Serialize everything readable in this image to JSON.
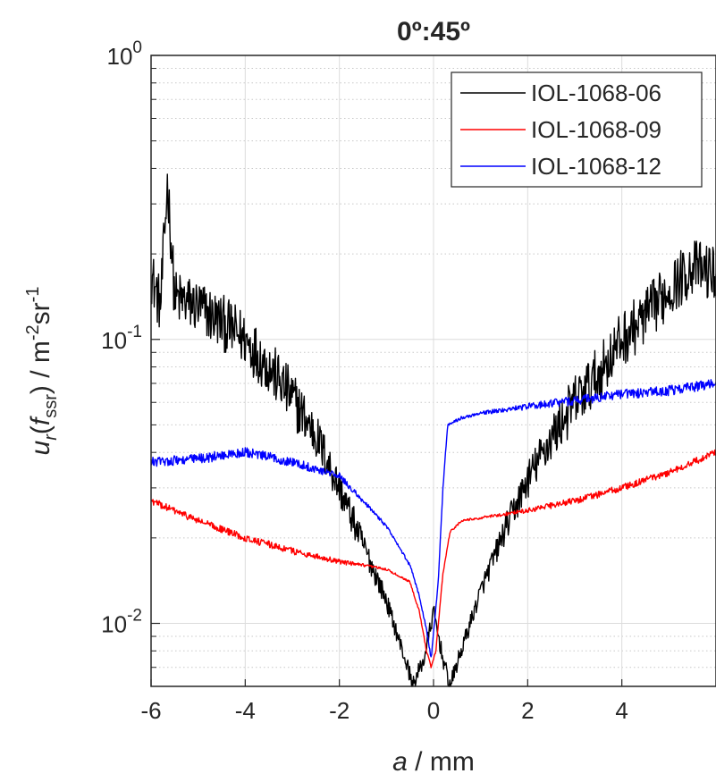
{
  "chart_data": {
    "type": "line",
    "title": "0º:45º",
    "xlabel": {
      "var": "a",
      "rest": " / mm"
    },
    "ylabel": {
      "var": "u",
      "sub_r": "r",
      "paren_open": "(",
      "f": "f",
      "sub_ssr": "ssr",
      "paren_close": ")",
      "unit": " / m",
      "exp1": "-2",
      "sr": "sr",
      "exp2": "-1"
    },
    "xlim": [
      -6,
      6
    ],
    "ylim": [
      0.006,
      1
    ],
    "yscale": "log",
    "grid": true,
    "minor_grid": true,
    "legend_position": "top-right",
    "x_ticks": [
      -6,
      -4,
      -2,
      0,
      2,
      4
    ],
    "x_tick_labels": [
      "-6",
      "-4",
      "-2",
      "0",
      "2",
      "4"
    ],
    "y_ticks": [
      {
        "base": "10",
        "exp": "0",
        "value": 1
      },
      {
        "base": "10",
        "exp": "-1",
        "value": 0.1
      },
      {
        "base": "10",
        "exp": "-2",
        "value": 0.01
      }
    ],
    "series": [
      {
        "name": "IOL-1068-06",
        "color": "#000000",
        "noise": 0.2,
        "points": [
          [
            -6.0,
            0.17
          ],
          [
            -5.8,
            0.13
          ],
          [
            -5.65,
            0.36
          ],
          [
            -5.5,
            0.14
          ],
          [
            -5.0,
            0.13
          ],
          [
            -4.5,
            0.115
          ],
          [
            -4.0,
            0.1
          ],
          [
            -3.5,
            0.08
          ],
          [
            -3.0,
            0.062
          ],
          [
            -2.5,
            0.046
          ],
          [
            -2.0,
            0.03
          ],
          [
            -1.5,
            0.019
          ],
          [
            -1.0,
            0.012
          ],
          [
            -0.5,
            0.0066
          ],
          [
            -0.45,
            0.006
          ],
          [
            -0.2,
            0.0075
          ],
          [
            0.0,
            0.011
          ],
          [
            0.2,
            0.0075
          ],
          [
            0.35,
            0.006
          ],
          [
            0.5,
            0.0072
          ],
          [
            1.0,
            0.013
          ],
          [
            1.5,
            0.021
          ],
          [
            2.0,
            0.032
          ],
          [
            2.5,
            0.045
          ],
          [
            3.0,
            0.06
          ],
          [
            3.5,
            0.075
          ],
          [
            4.0,
            0.1
          ],
          [
            4.5,
            0.12
          ],
          [
            5.0,
            0.15
          ],
          [
            5.5,
            0.18
          ],
          [
            6.0,
            0.17
          ]
        ]
      },
      {
        "name": "IOL-1068-09",
        "color": "#ff0000",
        "noise": 0.025,
        "points": [
          [
            -6.0,
            0.027
          ],
          [
            -5.0,
            0.023
          ],
          [
            -4.0,
            0.02
          ],
          [
            -3.0,
            0.018
          ],
          [
            -2.0,
            0.0165
          ],
          [
            -1.0,
            0.0155
          ],
          [
            -0.5,
            0.014
          ],
          [
            -0.3,
            0.011
          ],
          [
            -0.15,
            0.008
          ],
          [
            -0.05,
            0.007
          ],
          [
            0.05,
            0.008
          ],
          [
            0.2,
            0.015
          ],
          [
            0.35,
            0.021
          ],
          [
            0.6,
            0.023
          ],
          [
            1.0,
            0.0235
          ],
          [
            2.0,
            0.025
          ],
          [
            3.0,
            0.027
          ],
          [
            4.0,
            0.03
          ],
          [
            5.0,
            0.034
          ],
          [
            6.0,
            0.04
          ]
        ]
      },
      {
        "name": "IOL-1068-12",
        "color": "#0000ff",
        "noise": 0.035,
        "points": [
          [
            -6.0,
            0.037
          ],
          [
            -5.0,
            0.038
          ],
          [
            -4.0,
            0.04
          ],
          [
            -3.0,
            0.037
          ],
          [
            -2.0,
            0.033
          ],
          [
            -1.5,
            0.027
          ],
          [
            -1.0,
            0.022
          ],
          [
            -0.5,
            0.016
          ],
          [
            -0.3,
            0.0125
          ],
          [
            -0.15,
            0.0095
          ],
          [
            -0.05,
            0.0075
          ],
          [
            0.1,
            0.014
          ],
          [
            0.2,
            0.03
          ],
          [
            0.3,
            0.05
          ],
          [
            0.6,
            0.053
          ],
          [
            1.0,
            0.055
          ],
          [
            2.0,
            0.058
          ],
          [
            3.0,
            0.061
          ],
          [
            4.0,
            0.064
          ],
          [
            5.0,
            0.066
          ],
          [
            6.0,
            0.07
          ]
        ]
      }
    ]
  }
}
